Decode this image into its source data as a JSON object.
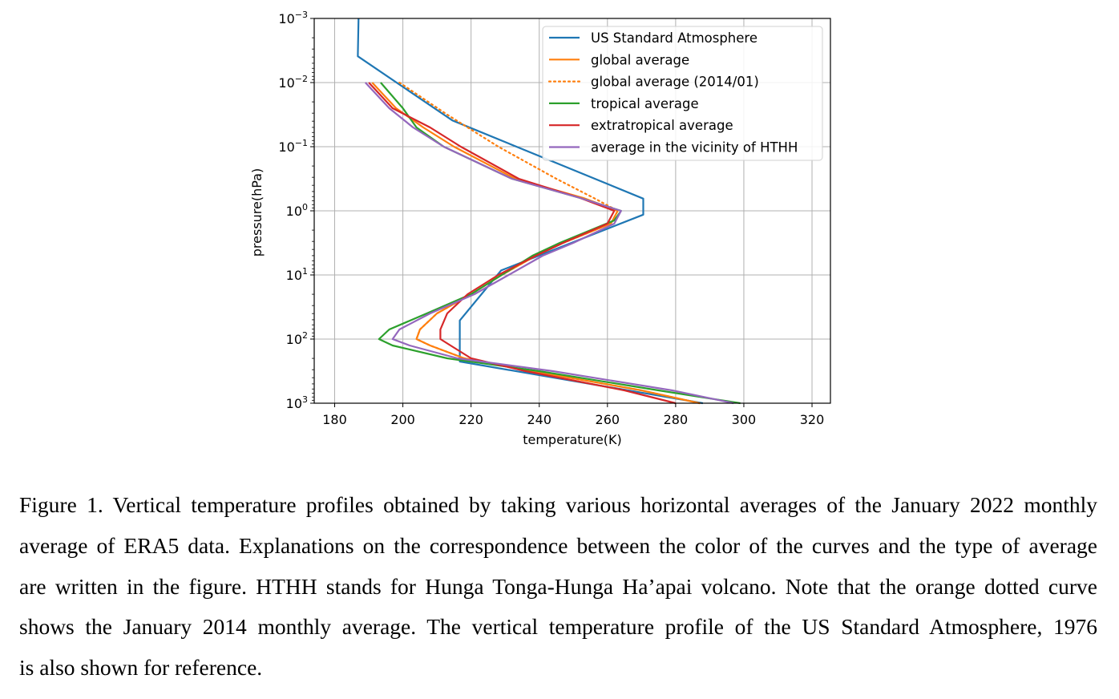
{
  "chart_data": {
    "type": "line",
    "xlabel": "temperature(K)",
    "ylabel": "pressure(hPa)",
    "xlim": [
      174,
      325.4
    ],
    "ylim_log10": [
      -3,
      3
    ],
    "y_inverted": true,
    "y_scale": "log",
    "grid": true,
    "legend_position": "top-right",
    "xticks": [
      180,
      200,
      220,
      240,
      260,
      280,
      300,
      320
    ],
    "yticks": [
      {
        "base": "10",
        "exp": "−3",
        "log10": -3
      },
      {
        "base": "10",
        "exp": "−2",
        "log10": -2
      },
      {
        "base": "10",
        "exp": "−1",
        "log10": -1
      },
      {
        "base": "10",
        "exp": "0",
        "log10": 0
      },
      {
        "base": "10",
        "exp": "1",
        "log10": 1
      },
      {
        "base": "10",
        "exp": "2",
        "log10": 2
      },
      {
        "base": "10",
        "exp": "3",
        "log10": 3
      }
    ],
    "series": [
      {
        "name": "US Standard Atmosphere",
        "color": "#1f77b4",
        "style": "solid",
        "log10p": [
          -3,
          -2.41,
          -1.41,
          -0.19,
          0.06,
          0.93,
          1.71,
          2.35,
          3
        ],
        "T": [
          187,
          186.8,
          214.5,
          270.5,
          270.5,
          228.8,
          216.7,
          216.7,
          288
        ]
      },
      {
        "name": "global average",
        "color": "#ff7f0e",
        "style": "solid",
        "log10p": [
          -2,
          -1.6,
          -1.3,
          -1,
          -0.5,
          -0.2,
          0,
          0.2,
          0.5,
          0.7,
          1,
          1.3,
          1.6,
          1.85,
          2,
          2.1,
          2.3,
          2.5,
          2.8,
          3
        ],
        "T": [
          191,
          198,
          206,
          215,
          233,
          253,
          263,
          261,
          247,
          239,
          229,
          220,
          210,
          205,
          204,
          208,
          218,
          238,
          270,
          287
        ]
      },
      {
        "name": "global average (2014/01)",
        "color": "#ff7f0e",
        "style": "dotted",
        "log10p": [
          -2,
          -1.5,
          -1,
          -0.5,
          -0.2,
          0,
          0.2,
          0.5,
          0.7,
          1,
          1.3,
          1.6,
          1.85,
          2,
          2.1,
          2.3,
          2.5,
          2.8,
          3
        ],
        "T": [
          199,
          213,
          228,
          245,
          256,
          263,
          261,
          247,
          239,
          229,
          220,
          210,
          205,
          204,
          208,
          218,
          238,
          270,
          287
        ]
      },
      {
        "name": "tropical average",
        "color": "#2ca02c",
        "style": "solid",
        "log10p": [
          -2,
          -1.6,
          -1.3,
          -1,
          -0.5,
          -0.2,
          0,
          0.15,
          0.5,
          0.7,
          1,
          1.3,
          1.6,
          1.85,
          2,
          2.1,
          2.3,
          2.5,
          2.8,
          3
        ],
        "T": [
          193.5,
          200,
          204,
          212,
          232,
          252,
          264,
          262,
          246,
          238,
          229,
          220,
          207,
          196,
          193,
          197,
          213,
          240,
          275,
          299
        ]
      },
      {
        "name": "extratropical average",
        "color": "#d62728",
        "style": "solid",
        "log10p": [
          -2,
          -1.6,
          -1.3,
          -1,
          -0.5,
          -0.2,
          0,
          0.2,
          0.5,
          0.7,
          1,
          1.3,
          1.6,
          1.85,
          2,
          2.1,
          2.3,
          2.5,
          2.8,
          3
        ],
        "T": [
          190,
          197,
          208,
          217,
          234,
          252,
          262,
          260,
          247,
          239,
          228,
          219,
          213,
          211,
          211,
          214,
          220,
          236,
          265,
          280
        ]
      },
      {
        "name": "average in the vicinity of HTHH",
        "color": "#9467bd",
        "style": "solid",
        "log10p": [
          -2,
          -1.6,
          -1.3,
          -1,
          -0.5,
          -0.2,
          0,
          0.2,
          0.5,
          0.7,
          1,
          1.3,
          1.6,
          1.85,
          2,
          2.1,
          2.3,
          2.5,
          2.8,
          3
        ],
        "T": [
          189,
          196,
          203,
          212,
          232,
          252,
          264,
          262,
          250,
          241,
          231,
          221,
          208,
          199,
          197,
          202,
          216,
          244,
          279,
          297
        ]
      }
    ]
  },
  "caption": {
    "lines": [
      "Figure 1. Vertical temperature profiles obtained by taking various horizontal averages of the January 2022 monthly",
      "average of ERA5 data. Explanations on the correspondence between the color of the curves and the type of average",
      "are written in the figure. HTHH stands for Hunga Tonga-Hunga Ha’apai volcano. Note that the orange dotted curve",
      "shows the January 2014 monthly average. The vertical temperature profile of the US Standard Atmosphere, 1976",
      "is also shown for reference."
    ]
  }
}
